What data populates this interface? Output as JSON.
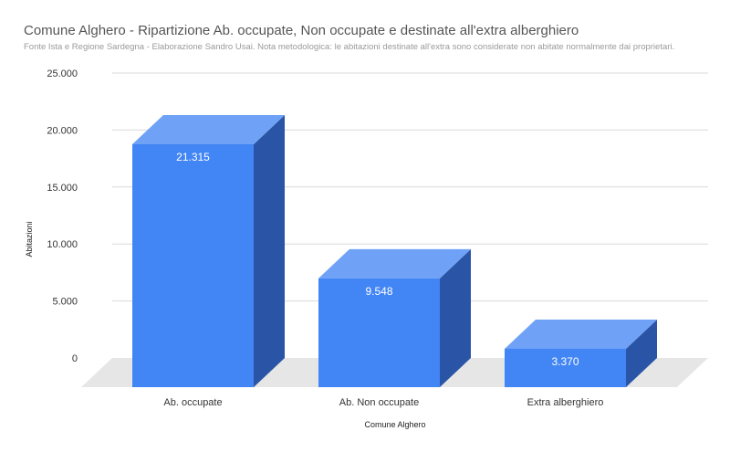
{
  "chart_data": {
    "type": "bar",
    "title": "Comune Alghero - Ripartizione Ab. occupate, Non occupate e destinate all'extra alberghiero",
    "subtitle": "Fonte Ista e Regione Sardegna - Elaborazione Sandro Usai. Nota metodologica: le abitazioni destinate all'extra sono considerate non abitate normalmente dai proprietari.",
    "xlabel": "Comune Alghero",
    "ylabel": "Abitazioni",
    "categories": [
      "Ab. occupate",
      "Ab. Non occupate",
      "Extra alberghiero"
    ],
    "values": [
      21315,
      9548,
      3370
    ],
    "data_labels": [
      "21.315",
      "9.548",
      "3.370"
    ],
    "yticks": [
      0,
      5000,
      10000,
      15000,
      20000,
      25000
    ],
    "ytick_labels": [
      "0",
      "5.000",
      "10.000",
      "15.000",
      "20.000",
      "25.000"
    ],
    "ylim": [
      0,
      25000
    ],
    "grid": true,
    "legend": "none",
    "style": "3d",
    "colors": {
      "bar_front": "#4285f4",
      "bar_top": "#6fa2f7",
      "bar_side": "#2a55a6",
      "floor": "#e6e6e6",
      "grid": "#d9d9d9"
    }
  }
}
